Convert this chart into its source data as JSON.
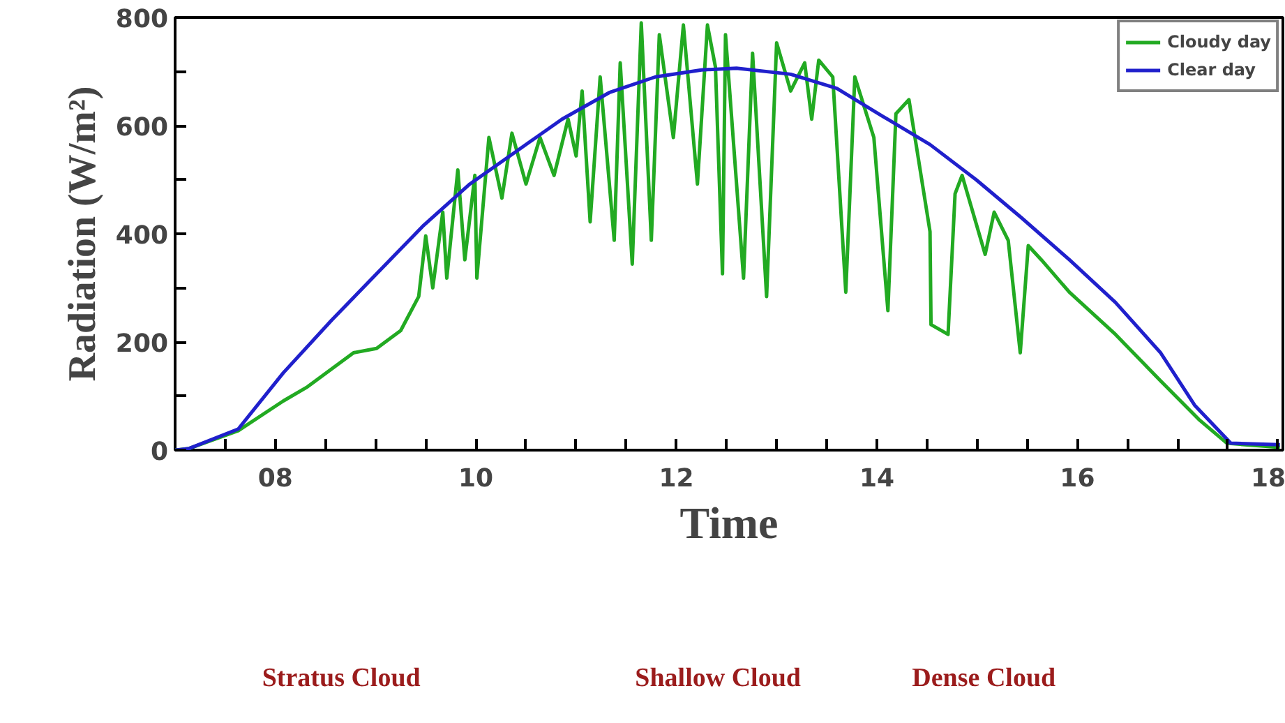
{
  "chart_data": {
    "type": "line",
    "xlabel": "Time",
    "ylabel": "Radiation (W/m²)",
    "xlim": [
      7,
      18.05
    ],
    "ylim": [
      0,
      800
    ],
    "xticks": [
      {
        "value": 7.5,
        "label": null
      },
      {
        "value": 8,
        "label": "08"
      },
      {
        "value": 8.5,
        "label": null
      },
      {
        "value": 9,
        "label": null
      },
      {
        "value": 9.5,
        "label": null
      },
      {
        "value": 10,
        "label": "10"
      },
      {
        "value": 10.5,
        "label": null
      },
      {
        "value": 11,
        "label": null
      },
      {
        "value": 11.5,
        "label": null
      },
      {
        "value": 12,
        "label": "12"
      },
      {
        "value": 12.5,
        "label": null
      },
      {
        "value": 13,
        "label": null
      },
      {
        "value": 13.5,
        "label": null
      },
      {
        "value": 14,
        "label": "14"
      },
      {
        "value": 14.5,
        "label": null
      },
      {
        "value": 15,
        "label": null
      },
      {
        "value": 15.5,
        "label": null
      },
      {
        "value": 16,
        "label": "16"
      },
      {
        "value": 16.5,
        "label": null
      },
      {
        "value": 17,
        "label": null
      },
      {
        "value": 17.5,
        "label": null
      },
      {
        "value": 18,
        "label": "18"
      }
    ],
    "yticks": [
      0,
      {
        "value": 100,
        "label": null
      },
      200,
      {
        "value": 300,
        "label": null
      },
      400,
      {
        "value": 500,
        "label": null
      },
      600,
      {
        "value": 700,
        "label": null
      },
      800
    ],
    "series": [
      {
        "name": "Cloudy day",
        "color": "#22aa22",
        "x": [
          7.0,
          7.14,
          7.63,
          8.08,
          8.32,
          8.78,
          9.01,
          9.25,
          9.43,
          9.5,
          9.57,
          9.67,
          9.71,
          9.82,
          9.89,
          9.99,
          10.01,
          10.13,
          10.26,
          10.36,
          10.5,
          10.64,
          10.78,
          10.92,
          11.0,
          11.06,
          11.14,
          11.24,
          11.38,
          11.44,
          11.56,
          11.65,
          11.75,
          11.83,
          11.97,
          12.07,
          12.21,
          12.31,
          12.39,
          12.46,
          12.49,
          12.67,
          12.76,
          12.9,
          13.0,
          13.14,
          13.28,
          13.35,
          13.42,
          13.56,
          13.69,
          13.78,
          13.97,
          14.11,
          14.19,
          14.32,
          14.53,
          14.54,
          14.71,
          14.78,
          14.85,
          15.08,
          15.17,
          15.31,
          15.43,
          15.51,
          15.64,
          15.92,
          16.38,
          16.83,
          17.21,
          17.49,
          17.67,
          18.02
        ],
        "values": [
          0,
          3,
          36,
          91,
          117,
          180,
          188,
          221,
          284,
          396,
          300,
          440,
          318,
          518,
          352,
          508,
          318,
          578,
          466,
          586,
          492,
          578,
          508,
          612,
          544,
          664,
          422,
          690,
          388,
          716,
          344,
          790,
          388,
          768,
          578,
          786,
          492,
          786,
          708,
          326,
          768,
          318,
          734,
          284,
          753,
          664,
          716,
          612,
          721,
          690,
          292,
          690,
          578,
          258,
          622,
          648,
          404,
          232,
          214,
          474,
          508,
          362,
          440,
          388,
          180,
          378,
          352,
          292,
          214,
          128,
          57,
          13,
          10,
          5
        ]
      },
      {
        "name": "Clear day",
        "color": "#2020cc",
        "x": [
          7.0,
          7.14,
          7.63,
          8.08,
          8.56,
          9.01,
          9.47,
          9.94,
          10.4,
          10.86,
          11.33,
          11.79,
          12.25,
          12.6,
          13.14,
          13.6,
          14.06,
          14.53,
          14.99,
          15.44,
          15.92,
          16.38,
          16.83,
          17.17,
          17.53,
          18.02
        ],
        "values": [
          0,
          3,
          39,
          143,
          240,
          326,
          414,
          492,
          552,
          612,
          661,
          690,
          703,
          706,
          695,
          669,
          617,
          565,
          500,
          430,
          352,
          273,
          180,
          83,
          13,
          10
        ]
      }
    ],
    "legend": "top right",
    "line_style": "solid",
    "grid": false,
    "annotations": [
      "Stratus Cloud",
      "Shallow Cloud",
      "Dense Cloud"
    ]
  }
}
